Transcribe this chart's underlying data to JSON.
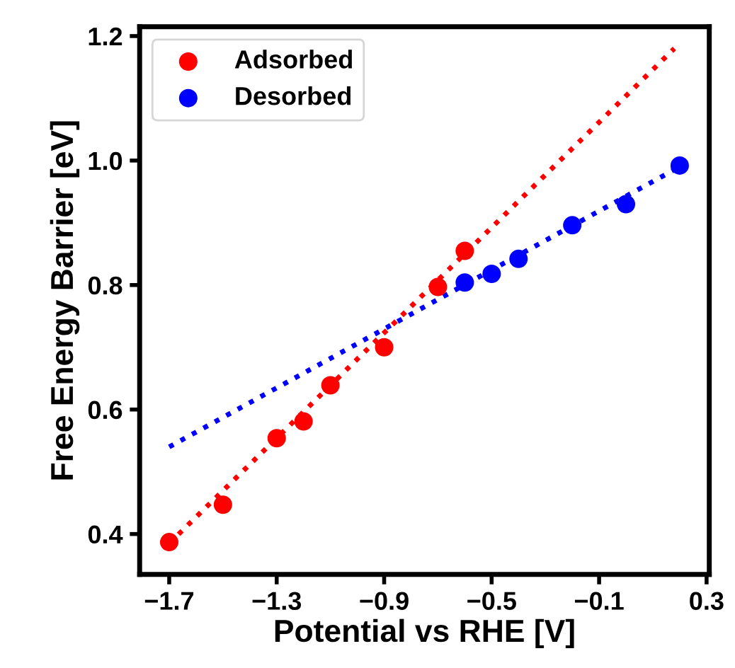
{
  "chart_data": {
    "type": "scatter",
    "xlabel": "Potential vs RHE [V]",
    "ylabel": "Free Energy Barrier [eV]",
    "xlim": [
      -1.81,
      0.31
    ],
    "ylim": [
      0.335,
      1.215
    ],
    "xticks": [
      {
        "value": -1.7,
        "label": "−1.7"
      },
      {
        "value": -1.3,
        "label": "−1.3"
      },
      {
        "value": -0.9,
        "label": "−0.9"
      },
      {
        "value": -0.5,
        "label": "−0.5"
      },
      {
        "value": -0.1,
        "label": "−0.1"
      },
      0.3
    ],
    "yticks": [
      0.4,
      0.6,
      0.8,
      {
        "value": 1.0,
        "label": "1.0"
      },
      1.2
    ],
    "grid": false,
    "legend": "top left",
    "marker": "circle",
    "series": [
      {
        "name": "Adsorbed",
        "color": "#ff0000",
        "x": [
          -1.7,
          -1.5,
          -1.3,
          -1.2,
          -1.1,
          -0.9,
          -0.7,
          -0.6
        ],
        "values": [
          0.387,
          0.447,
          0.554,
          0.581,
          0.639,
          0.7,
          0.797,
          0.855
        ]
      },
      {
        "name": "Desorbed",
        "color": "#0000ff",
        "x": [
          -0.6,
          -0.5,
          -0.4,
          -0.2,
          0.0,
          0.2
        ],
        "values": [
          0.804,
          0.818,
          0.842,
          0.896,
          0.93,
          0.992
        ]
      },
      {
        "type": "line",
        "line_style": "dotted",
        "marker": "none",
        "color": "#ff0000",
        "x": [
          -1.7,
          0.18
        ],
        "values": [
          0.385,
          1.18
        ]
      },
      {
        "type": "line",
        "line_style": "dotted",
        "marker": "none",
        "color": "#0000ff",
        "x": [
          -1.7,
          0.2
        ],
        "values": [
          0.54,
          0.99
        ]
      }
    ]
  }
}
